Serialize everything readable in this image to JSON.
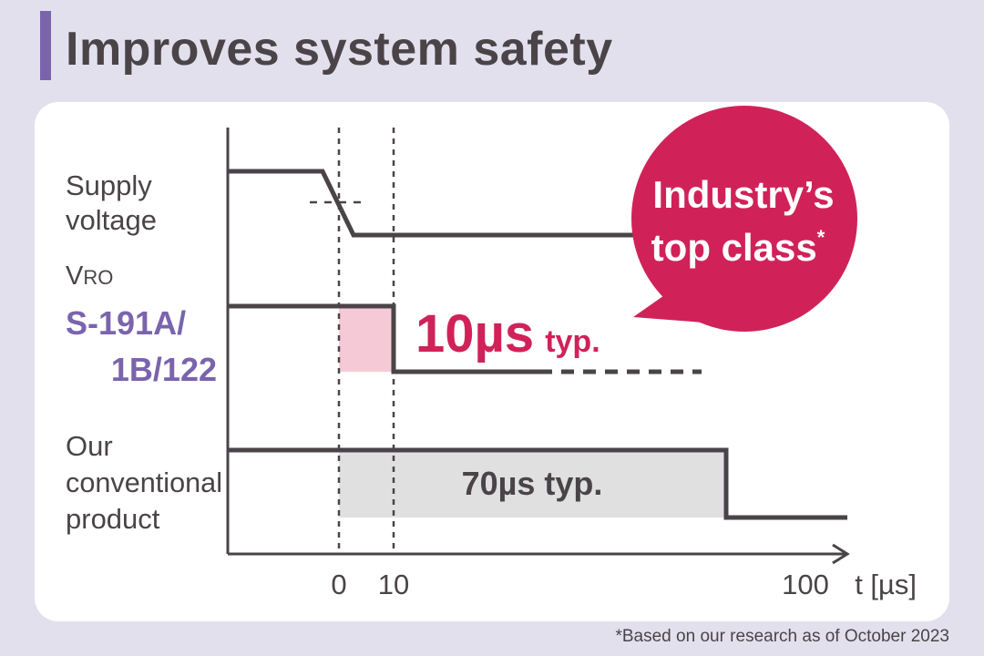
{
  "header": {
    "title": "Improves system safety"
  },
  "diagram": {
    "supply_label": [
      "Supply",
      "voltage"
    ],
    "vro_label": "VRO",
    "vro_label_prefix": "V",
    "vro_label_suffix": "RO",
    "model_label": [
      "S-191A/",
      "1B/122"
    ],
    "conventional_label": [
      "Our",
      "conventional",
      "product"
    ],
    "fast_value": "10µs",
    "fast_suffix": "typ.",
    "slow_value": "70µs typ.",
    "badge": {
      "line1": "Industry’s",
      "line2": "top class",
      "mark": "*"
    },
    "ticks": [
      "0",
      "10",
      "100"
    ],
    "axis_label": "t [µs]"
  },
  "footnote": "*Based on our research as of October 2023",
  "colors": {
    "accent": "#7a64ad",
    "highlight": "#d02259",
    "line": "#4a4448",
    "fast_fill": "#f6c9d6",
    "slow_fill": "#e0e0e0"
  }
}
